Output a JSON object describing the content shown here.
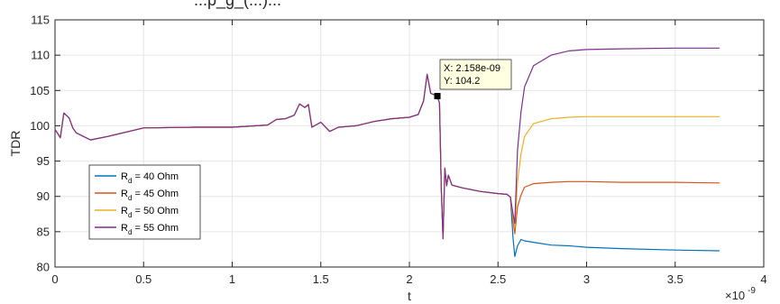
{
  "title_fragment": "...p_g_(...)...",
  "chart_data": {
    "type": "line",
    "title": "",
    "xlabel": "t",
    "ylabel": "TDR",
    "x_exponent_label": "×10",
    "x_exponent_power": "-9",
    "xlim": [
      0,
      4
    ],
    "ylim": [
      80,
      115
    ],
    "xticks": [
      0,
      0.5,
      1,
      1.5,
      2,
      2.5,
      3,
      3.5,
      4
    ],
    "xtick_labels": [
      "0",
      "0.5",
      "1",
      "1.5",
      "2",
      "2.5",
      "3",
      "3.5",
      "4"
    ],
    "yticks": [
      80,
      85,
      90,
      95,
      100,
      105,
      110,
      115
    ],
    "ytick_labels": [
      "80",
      "85",
      "90",
      "95",
      "100",
      "105",
      "110",
      "115"
    ],
    "grid": true,
    "legend_position": "bottom-left",
    "shared": {
      "x": [
        0,
        0.03,
        0.05,
        0.08,
        0.1,
        0.12,
        0.2,
        0.3,
        0.5,
        0.8,
        1.0,
        1.2,
        1.25,
        1.3,
        1.35,
        1.38,
        1.41,
        1.43,
        1.45,
        1.5,
        1.55,
        1.6,
        1.7,
        1.8,
        1.9,
        2.0,
        2.05,
        2.08,
        2.1,
        2.12,
        2.158,
        2.17,
        2.18,
        2.19,
        2.2,
        2.21,
        2.22,
        2.24,
        2.3,
        2.4,
        2.5,
        2.55,
        2.57
      ],
      "y": [
        99.5,
        98.3,
        101.8,
        101.1,
        99.7,
        99.0,
        98.0,
        98.5,
        99.7,
        99.8,
        99.8,
        100.1,
        100.9,
        101.0,
        101.5,
        103.1,
        102.6,
        103.0,
        99.8,
        100.5,
        99.2,
        99.8,
        100.0,
        100.6,
        101.0,
        101.2,
        101.6,
        103.5,
        107.3,
        104.6,
        104.2,
        103.2,
        91.0,
        84.0,
        94.0,
        91.5,
        93.0,
        91.6,
        91.2,
        90.7,
        90.4,
        90.3,
        89.9
      ]
    },
    "series": [
      {
        "name": "R",
        "subscript": "d",
        "suffix": " = 40 Ohm",
        "color": "#0072BD",
        "x": [
          2.57,
          2.585,
          2.595,
          2.61,
          2.63,
          2.65,
          2.7,
          2.8,
          2.9,
          3.0,
          3.2,
          3.5,
          3.75
        ],
        "y": [
          89.9,
          84.0,
          81.5,
          83.0,
          83.9,
          83.7,
          83.5,
          83.1,
          83.0,
          82.8,
          82.6,
          82.4,
          82.3
        ]
      },
      {
        "name": "R",
        "subscript": "d",
        "suffix": " = 45 Ohm",
        "color": "#D95319",
        "x": [
          2.57,
          2.585,
          2.595,
          2.61,
          2.63,
          2.65,
          2.7,
          2.8,
          2.9,
          3.0,
          3.2,
          3.5,
          3.75
        ],
        "y": [
          89.9,
          86.5,
          84.7,
          88.5,
          90.2,
          91.3,
          91.8,
          92.0,
          92.1,
          92.1,
          92.0,
          92.0,
          91.9
        ]
      },
      {
        "name": "R",
        "subscript": "d",
        "suffix": " = 50 Ohm",
        "color": "#EDB120",
        "x": [
          2.57,
          2.585,
          2.595,
          2.61,
          2.63,
          2.65,
          2.7,
          2.8,
          2.9,
          3.0,
          3.2,
          3.5,
          3.75
        ],
        "y": [
          89.9,
          87.0,
          85.6,
          92.0,
          96.0,
          98.5,
          100.3,
          101.0,
          101.2,
          101.3,
          101.3,
          101.3,
          101.3
        ]
      },
      {
        "name": "R",
        "subscript": "d",
        "suffix": " = 55 Ohm",
        "color": "#7E2F8E",
        "x": [
          2.57,
          2.585,
          2.595,
          2.61,
          2.63,
          2.65,
          2.7,
          2.8,
          2.9,
          3.0,
          3.2,
          3.5,
          3.75
        ],
        "y": [
          89.9,
          87.5,
          86.2,
          96.5,
          102.0,
          105.5,
          108.5,
          110.0,
          110.6,
          110.8,
          110.9,
          111.0,
          111.0
        ]
      }
    ],
    "datatip": {
      "x": 2.158,
      "y": 104.2,
      "line1": "X: 2.158e-09",
      "line2": "Y: 104.2"
    }
  }
}
